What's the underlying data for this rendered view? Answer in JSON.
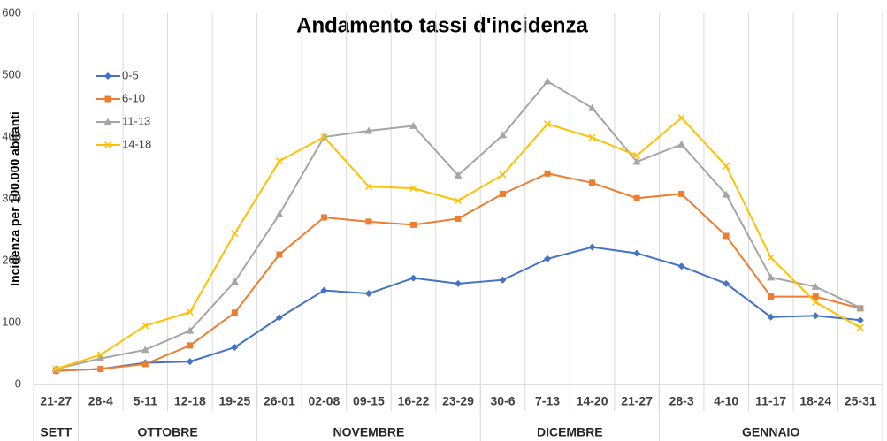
{
  "chart_data": {
    "type": "line",
    "title": "Andamento tassi d'incidenza",
    "y_label": "Incidenza per 100.000 abitanti",
    "categories": [
      "21-27",
      "28-4",
      "5-11",
      "12-18",
      "19-25",
      "26-01",
      "02-08",
      "09-15",
      "16-22",
      "23-29",
      "30-6",
      "7-13",
      "14-20",
      "21-27",
      "28-3",
      "4-10",
      "11-17",
      "18-24",
      "25-31"
    ],
    "groups": [
      "SETT",
      "OTTOBRE",
      "NOVEMBRE",
      "DICEMBRE",
      "GENNAIO"
    ],
    "series": [
      {
        "name": "0-5",
        "color": "#4472c4",
        "marker": "diamond",
        "values": [
          22,
          25,
          35,
          37,
          60,
          108,
          152,
          147,
          172,
          163,
          169,
          203,
          222,
          212,
          191,
          163,
          109,
          111,
          104
        ]
      },
      {
        "name": "6-10",
        "color": "#ed7d31",
        "marker": "square",
        "values": [
          22,
          25,
          33,
          63,
          116,
          210,
          270,
          263,
          258,
          268,
          308,
          341,
          326,
          301,
          308,
          240,
          142,
          142,
          123
        ]
      },
      {
        "name": "11-13",
        "color": "#a5a5a5",
        "marker": "triangle",
        "values": [
          25,
          42,
          56,
          87,
          166,
          275,
          400,
          410,
          418,
          338,
          403,
          490,
          447,
          360,
          388,
          307,
          173,
          158,
          124
        ]
      },
      {
        "name": "14-18",
        "color": "#ffc000",
        "marker": "x",
        "values": [
          25,
          48,
          95,
          117,
          244,
          361,
          400,
          320,
          317,
          297,
          339,
          421,
          399,
          370,
          431,
          353,
          205,
          133,
          92
        ]
      }
    ],
    "ylim": [
      0,
      600
    ],
    "yticks": [
      0,
      100,
      200,
      300,
      400,
      500,
      600
    ],
    "grid": true
  }
}
